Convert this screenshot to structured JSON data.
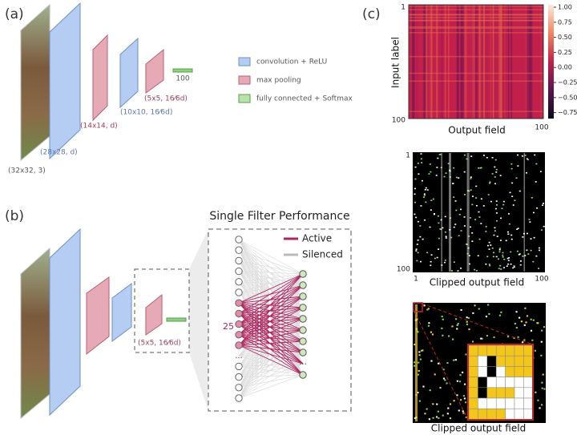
{
  "panel_a": {
    "label": "(a)",
    "layers": [
      "(32x32, 3)",
      "(28x28, d)",
      "(14x14, d)",
      "(10x10, 16⁄6d)",
      "(5x5, 16⁄6d)"
    ],
    "output": "100",
    "legend": [
      "convolution + ReLU",
      "max pooling",
      "fully connected + Softmax"
    ]
  },
  "panel_b": {
    "label": "(b)",
    "pool_layer": "(5x5, 16⁄6d)",
    "title": "Single Filter Performance",
    "legend": [
      "Active",
      "Silenced"
    ],
    "count": "25",
    "ellipsis_left": "...",
    "ellipsis_right": "..."
  },
  "panel_c": {
    "label": "(c)",
    "heatmap": {
      "y_label": "Input label",
      "x_label": "Output field",
      "y_ticks": [
        "1",
        "100"
      ],
      "x_ticks": [
        "100"
      ],
      "colorbar_ticks": [
        "1.00",
        "0.75",
        "0.50",
        "0.25",
        "0.00",
        "−0.25",
        "−0.50",
        "−0.75"
      ]
    },
    "clipped": {
      "y_ticks": [
        "1",
        "100"
      ],
      "x_ticks": [
        "1",
        "100"
      ],
      "x_label": "Clipped output field"
    },
    "zoom": {
      "x_label": "Clipped output field"
    }
  }
}
